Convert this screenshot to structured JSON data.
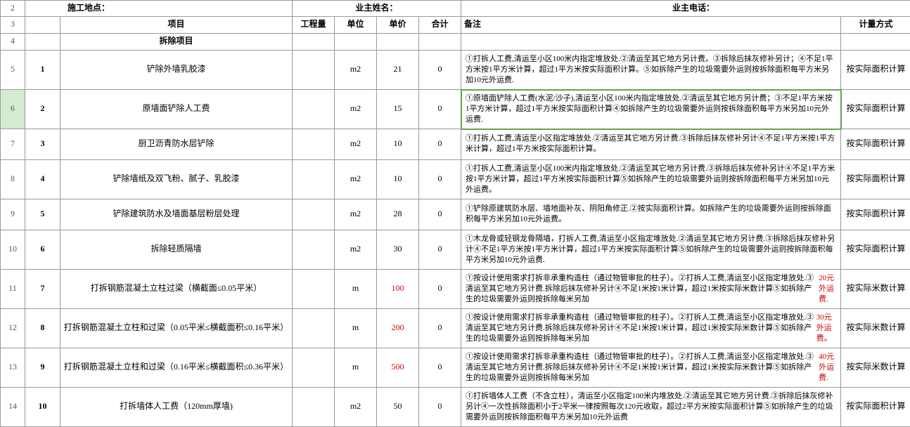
{
  "header_row2_label_a": "施工地点：",
  "header_row2_label_b": "业主姓名：",
  "header_row2_label_c": "业主电话：",
  "headers": {
    "project": "项目",
    "qty": "工程量",
    "unit": "单位",
    "price": "单价",
    "total": "合计",
    "remark": "备注",
    "method": "计量方式"
  },
  "section_title": "拆除项目",
  "row_numbers": [
    "2",
    "3",
    "4",
    "5",
    "6",
    "7",
    "8",
    "9",
    "10",
    "11",
    "12",
    "13",
    "14"
  ],
  "selected_row": "6",
  "rows": [
    {
      "seq": "1",
      "name": "铲除外墙乳胶漆",
      "qty": "",
      "unit": "m2",
      "price": "21",
      "price_red": false,
      "total": "0",
      "remark": "①打拆人工费,清运至小区100米内指定堆放处.②清运至其它地方另计费。③拆除后抹灰修补另计；④不足1平方米按1平方米计算，超过1平方米按实际面积计算。⑤如拆除产生的垃圾需要外运则按拆除面积每平方米另加10元外运费.",
      "method": "按实际面积计算",
      "h": "h56"
    },
    {
      "seq": "2",
      "name": "原墙面铲除人工费",
      "qty": "",
      "unit": "m2",
      "price": "15",
      "price_red": false,
      "total": "0",
      "remark": "①原墙面铲除人工费(水泥/沙子),清运至小区100米内指定堆放处.②清运至其它地方另计费；③不足1平方米按1平方米计算，超过1平方米按实际面积计算④如拆除产生的垃圾需要外运则按拆除面积每平方米另加10元外运费.",
      "method": "按实际面积计算",
      "h": "h56"
    },
    {
      "seq": "3",
      "name": "厨卫沥青防水层铲除",
      "qty": "",
      "unit": "m2",
      "price": "10",
      "price_red": false,
      "total": "0",
      "remark": "①打拆人工费,清运至小区指定堆放处.②清运至其它地方另计费.③拆除后抹灰修补另计④不足1平方米按1平方米计算，超过1平方米按实际面积计算。",
      "method": "按实际面积计算",
      "h": "h44"
    },
    {
      "seq": "4",
      "name": "铲除墙纸及双飞粉、腻子、乳胶漆",
      "qty": "",
      "unit": "m2",
      "price": "10",
      "price_red": false,
      "total": "0",
      "remark": "①打拆人工费,清运至小区100米内指定堆放处.②清运至其它地方另计费.③拆除后抹灰修补另计④不足1平方米按1平方米计算，超过1平方米按实际面积计算⑤如拆除产生的垃圾需要外运则按拆除面积每平方米另加10元外运费。",
      "method": "按实际面积计算",
      "h": "h56"
    },
    {
      "seq": "5",
      "name": "铲除建筑防水及墙面基层粉层处理",
      "qty": "",
      "unit": "m2",
      "price": "28",
      "price_red": false,
      "total": "0",
      "remark": "①铲除原建筑防水层、墙地面补灰、阴阳角修正.②按实际面积计算。如拆除产生的垃圾需要外运则按拆除面积每平方米另加10元外运费。",
      "method": "按实际面积计算",
      "h": "h44"
    },
    {
      "seq": "6",
      "name": "拆除轻质隔墙",
      "qty": "",
      "unit": "m2",
      "price": "30",
      "price_red": false,
      "total": "0",
      "remark": "①木龙骨或轻钢龙骨隔墙，打拆人工费,清运至小区指定堆放处.②清运至其它地方另计费.③拆除后抹灰修补另计④不足1平方米按1平方米计算，超过1平方米按实际面积计算⑤如拆除产生的垃圾需要外运则按拆除面积每平方米另加10元外运费.",
      "method": "按实际面积计算",
      "h": "h56"
    },
    {
      "seq": "7",
      "name": "打拆钢筋混凝土立柱过梁（横截面≤0.05平米）",
      "qty": "",
      "unit": "m",
      "price": "100",
      "price_red": true,
      "total": "0",
      "remark": "①按设计使用需求打拆非承重构造柱（通过物管审批的柱子）。②打拆人工费,清运至小区指定堆放处.③清运至其它地方另计费.拆除后抹灰修补另计④不足1米按1米计算，超过1米按实际米数计算⑤如拆除产生的垃圾需要外运则按拆除每米另加",
      "remark_tail": "20元外运费.",
      "remark_tail_red": true,
      "method": "按实际米数计算",
      "h": "h56"
    },
    {
      "seq": "8",
      "name": "打拆钢筋混凝土立柱和过梁（0.05平米≤横截面积≤0.16平米）",
      "qty": "",
      "unit": "m",
      "price": "200",
      "price_red": true,
      "total": "0",
      "remark": "①按设计使用需求打拆非承重构造柱（通过物管审批的柱子）。②打拆人工费,清运至小区指定堆放处.③清运至其它地方另计费.拆除后抹灰修补另计④不足1米按1米计算，超过1米按实际米数计算⑤如拆除产生的垃圾需要外运则按拆除每米另加",
      "remark_tail": "30元外运费。",
      "remark_tail_red": true,
      "method": "按实际米数计算",
      "h": "h56"
    },
    {
      "seq": "9",
      "name": "打拆钢筋混凝土立柱和过梁（0.16平米≤横截面积≤0.36平米）",
      "qty": "",
      "unit": "m",
      "price": "500",
      "price_red": true,
      "total": "0",
      "remark": "①按设计使用需求打拆非承重构造柱（通过物管审批的柱子）。②打拆人工费,清运至小区指定堆放处.③清运至其它地方另计费.拆除后抹灰修补另计④不足1米按1米计算，超过1米按实际米数计算⑤如拆除产生的垃圾需要外运则按拆除每米另加",
      "remark_tail": "40元外运费.",
      "remark_tail_red": true,
      "method": "按实际米数计算",
      "h": "h56"
    },
    {
      "seq": "10",
      "name": "打拆墙体人工费（120mm厚墙)",
      "qty": "",
      "unit": "m2",
      "price": "50",
      "price_red": false,
      "total": "0",
      "remark": "①打拆墙体人工费（不含立柱），清运至小区指定100米内堆放处.②清运至其它地方另计费.③拆除后抹灰修补另计④一次性拆除面积小于2平米一律按照每次120元收取，超过2平方米按实际面积计算⑤如拆除产生的垃圾需要外运则按拆除面积每平方米另加10元外运费",
      "method": "按实际面积计算",
      "h": "h56"
    }
  ]
}
